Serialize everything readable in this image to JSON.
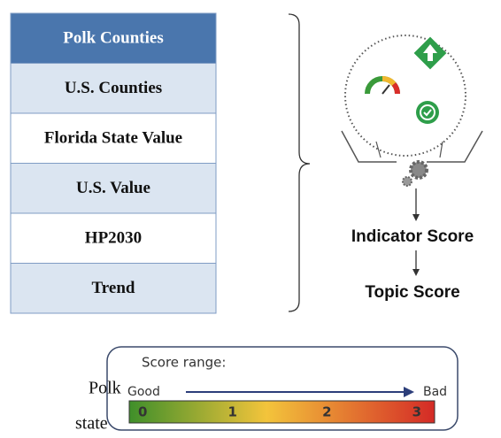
{
  "table": {
    "header": "Polk Counties",
    "rows": [
      "U.S. Counties",
      "Florida State Value",
      "U.S. Value",
      "HP2030",
      "Trend"
    ]
  },
  "flow": {
    "indicator": "Indicator Score",
    "topic": "Topic Score"
  },
  "score_range": {
    "title": "Score range:",
    "good": "Good",
    "bad": "Bad",
    "scale": [
      "0",
      "1",
      "2",
      "3"
    ]
  },
  "fragment": {
    "line1": "Polk",
    "line2": "state"
  }
}
